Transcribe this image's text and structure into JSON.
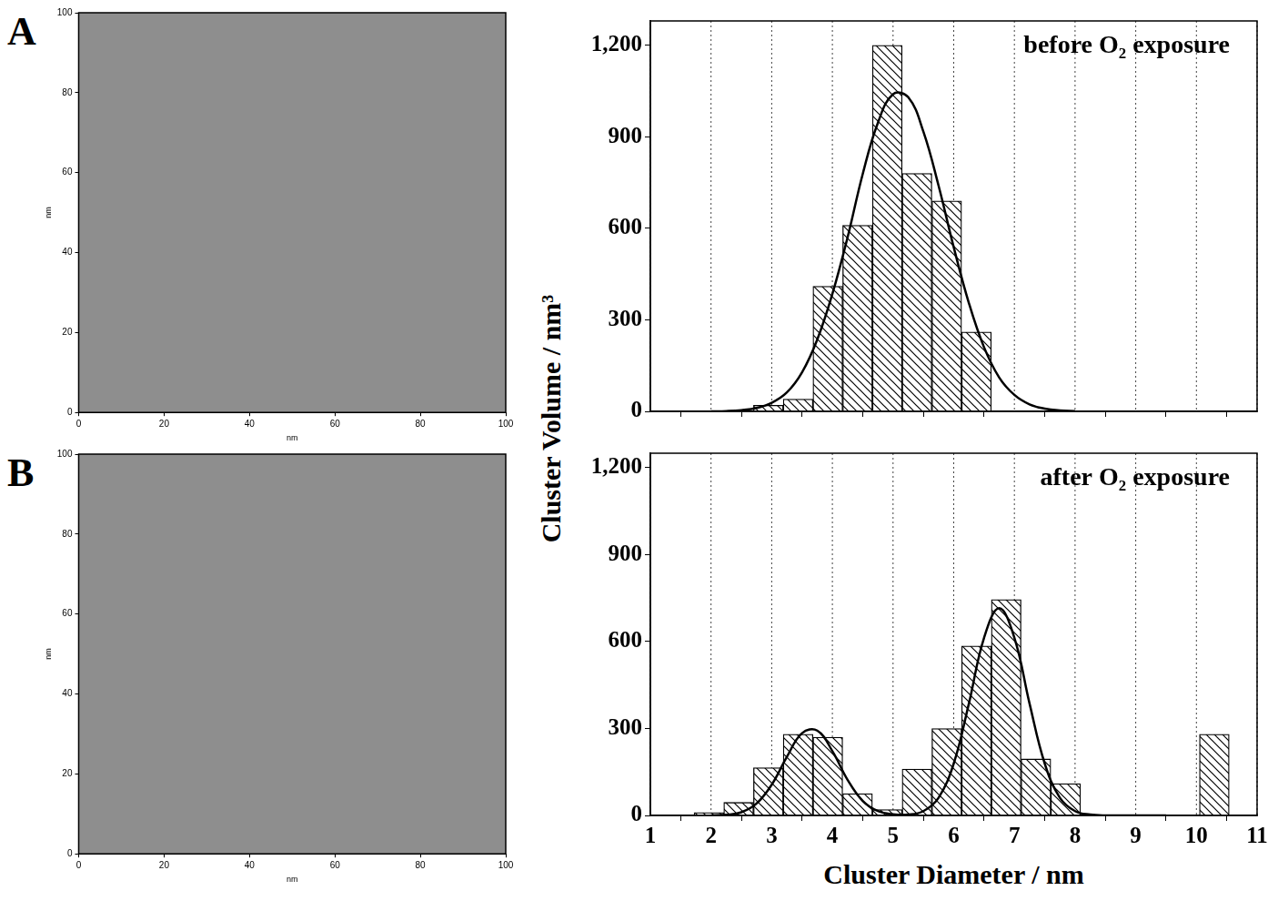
{
  "chart_data": [
    {
      "type": "image",
      "panel": "A",
      "xlabel": "nm",
      "ylabel": "nm",
      "xlim": [
        0,
        100
      ],
      "xticks": [
        0,
        20,
        40,
        60,
        80,
        100
      ],
      "ylim": [
        0,
        100
      ],
      "yticks": [
        0,
        20,
        40,
        60,
        80,
        100
      ]
    },
    {
      "type": "image",
      "panel": "B",
      "xlabel": "nm",
      "ylabel": "nm",
      "xlim": [
        0,
        100
      ],
      "xticks": [
        0,
        20,
        40,
        60,
        80,
        100
      ],
      "ylim": [
        0,
        100
      ],
      "yticks": [
        0,
        20,
        40,
        60,
        80,
        100
      ]
    },
    {
      "type": "histogram",
      "annotation": "before O₂ exposure",
      "color": "#000000",
      "bins": [
        1.72,
        2.21,
        2.7,
        3.19,
        3.68,
        4.17,
        4.66,
        5.15,
        5.64,
        6.13,
        6.62,
        7.11,
        7.6,
        8.09,
        8.58,
        9.07,
        9.56,
        10.05,
        10.54
      ],
      "counts": [
        0,
        0,
        20,
        40,
        410,
        610,
        1200,
        780,
        690,
        260,
        0,
        0,
        0,
        0,
        0,
        0,
        0,
        0
      ],
      "fit": {
        "x": [
          2,
          2.25,
          2.5,
          2.75,
          3,
          3.25,
          3.5,
          3.75,
          4,
          4.25,
          4.5,
          4.75,
          5,
          5.25,
          5.5,
          5.75,
          6,
          6.25,
          6.5,
          6.75,
          7,
          7.25,
          7.5,
          7.75,
          8
        ],
        "y": [
          0,
          1,
          4,
          11,
          28,
          62,
          128,
          235,
          385,
          570,
          778,
          946,
          1040,
          1030,
          917,
          740,
          538,
          355,
          210,
          111,
          54,
          23,
          9,
          3,
          1
        ]
      },
      "xlim": [
        1,
        11
      ],
      "xticks": [
        1,
        2,
        3,
        4,
        5,
        6,
        7,
        8,
        9,
        10,
        11
      ],
      "ylim": [
        0,
        1280
      ],
      "yticks": [
        0,
        300,
        600,
        900,
        1200
      ],
      "grid": "x",
      "tick_labels": "y"
    },
    {
      "type": "histogram",
      "annotation": "after O₂ exposure",
      "color": "#000000",
      "bins": [
        1.72,
        2.21,
        2.7,
        3.19,
        3.68,
        4.17,
        4.66,
        5.15,
        5.64,
        6.13,
        6.62,
        7.11,
        7.6,
        8.09,
        8.58,
        9.07,
        9.56,
        10.05,
        10.54
      ],
      "counts": [
        10,
        45,
        165,
        280,
        270,
        75,
        20,
        160,
        300,
        585,
        745,
        195,
        110,
        0,
        0,
        0,
        0,
        280
      ],
      "fit": {
        "x": [
          2,
          2.25,
          2.5,
          2.75,
          3,
          3.25,
          3.5,
          3.75,
          4,
          4.25,
          4.5,
          4.75,
          5,
          5.25,
          5.5,
          5.75,
          6,
          6.25,
          6.5,
          6.75,
          7,
          7.25,
          7.5,
          7.75,
          8,
          8.25,
          8.5,
          9,
          9.5
        ],
        "y": [
          0,
          2,
          11,
          41,
          106,
          202,
          284,
          293,
          222,
          123,
          50,
          15,
          4,
          3,
          15,
          61,
          179,
          386,
          613,
          715,
          613,
          386,
          179,
          61,
          15,
          3,
          0,
          0,
          0
        ]
      },
      "xlim": [
        1,
        11
      ],
      "xticks": [
        1,
        2,
        3,
        4,
        5,
        6,
        7,
        8,
        9,
        10,
        11
      ],
      "ylim": [
        0,
        1250
      ],
      "yticks": [
        0,
        300,
        600,
        900,
        1200
      ],
      "grid": "x",
      "tick_labels": true
    }
  ],
  "xlabel": "Cluster Diameter / nm",
  "ylabel": "Cluster Volume / nm³"
}
